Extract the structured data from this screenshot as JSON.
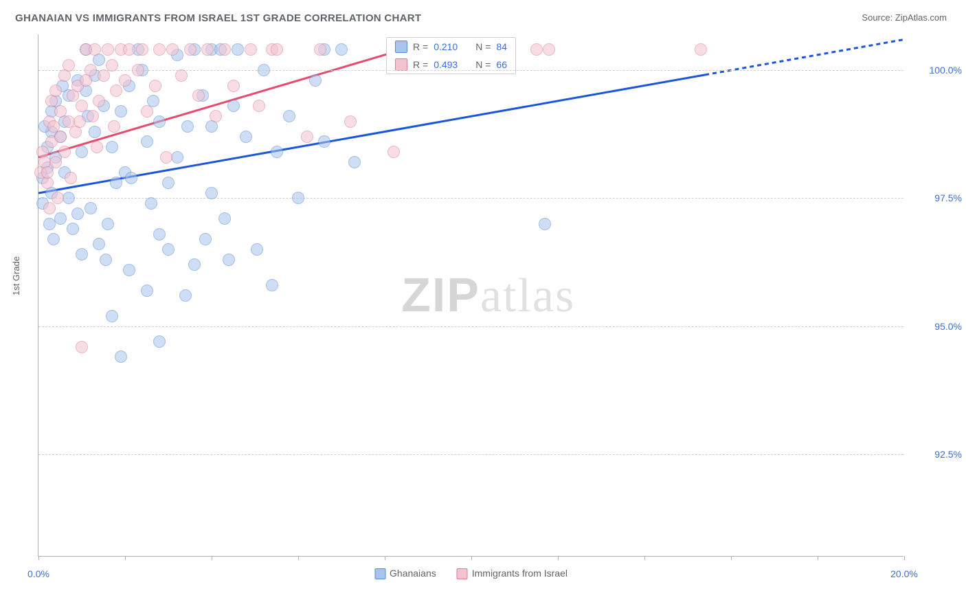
{
  "title": "GHANAIAN VS IMMIGRANTS FROM ISRAEL 1ST GRADE CORRELATION CHART",
  "source_label": "Source:",
  "source_value": "ZipAtlas.com",
  "ylabel": "1st Grade",
  "watermark_a": "ZIP",
  "watermark_b": "atlas",
  "chart": {
    "type": "scatter",
    "xlim": [
      0,
      20
    ],
    "ylim": [
      90.5,
      100.7
    ],
    "x_ticks": [
      0,
      2,
      4,
      6,
      8,
      10,
      12,
      14,
      16,
      18,
      20
    ],
    "x_tick_labels": {
      "0": "0.0%",
      "20": "20.0%"
    },
    "y_gridlines": [
      92.5,
      95.0,
      97.5,
      100.0
    ],
    "y_tick_labels": [
      "92.5%",
      "95.0%",
      "97.5%",
      "100.0%"
    ],
    "background_color": "#ffffff",
    "grid_color": "#d0d0d0",
    "axis_color": "#b0b0b0",
    "tick_label_color": "#3b6fd6",
    "marker_radius": 9,
    "marker_opacity": 0.55,
    "series": [
      {
        "id": "ghanaians",
        "label": "Ghanaians",
        "fill": "#a6c4ee",
        "stroke": "#5b8bd4",
        "trend_color": "#1a56db",
        "trend_width": 3,
        "R": "0.210",
        "N": "84",
        "trend": {
          "x1": 0,
          "y1": 97.6,
          "x2": 20,
          "y2": 100.6,
          "dash_from_x": 15.4
        },
        "points": [
          [
            0.1,
            97.9
          ],
          [
            0.1,
            97.4
          ],
          [
            0.2,
            98.1
          ],
          [
            0.2,
            98.5
          ],
          [
            0.25,
            97.0
          ],
          [
            0.3,
            98.8
          ],
          [
            0.3,
            97.6
          ],
          [
            0.3,
            99.2
          ],
          [
            0.4,
            99.4
          ],
          [
            0.4,
            98.3
          ],
          [
            0.5,
            97.1
          ],
          [
            0.5,
            98.7
          ],
          [
            0.6,
            99.0
          ],
          [
            0.6,
            98.0
          ],
          [
            0.7,
            97.5
          ],
          [
            0.7,
            99.5
          ],
          [
            0.8,
            96.9
          ],
          [
            0.9,
            97.2
          ],
          [
            0.9,
            99.8
          ],
          [
            1.0,
            96.4
          ],
          [
            1.0,
            98.4
          ],
          [
            1.1,
            100.4
          ],
          [
            1.1,
            99.6
          ],
          [
            1.2,
            97.3
          ],
          [
            1.3,
            99.9
          ],
          [
            1.3,
            98.8
          ],
          [
            1.4,
            96.6
          ],
          [
            1.4,
            100.2
          ],
          [
            1.5,
            99.3
          ],
          [
            1.6,
            97.0
          ],
          [
            1.7,
            95.2
          ],
          [
            1.7,
            98.5
          ],
          [
            1.9,
            99.2
          ],
          [
            1.9,
            94.4
          ],
          [
            2.0,
            98.0
          ],
          [
            2.1,
            96.1
          ],
          [
            2.1,
            99.7
          ],
          [
            2.3,
            100.4
          ],
          [
            2.5,
            98.6
          ],
          [
            2.5,
            95.7
          ],
          [
            2.6,
            97.4
          ],
          [
            2.8,
            96.8
          ],
          [
            2.8,
            99.0
          ],
          [
            2.8,
            94.7
          ],
          [
            3.0,
            97.8
          ],
          [
            3.2,
            100.3
          ],
          [
            3.2,
            98.3
          ],
          [
            3.4,
            95.6
          ],
          [
            3.6,
            100.4
          ],
          [
            3.6,
            96.2
          ],
          [
            3.8,
            99.5
          ],
          [
            4.0,
            97.6
          ],
          [
            4.0,
            100.4
          ],
          [
            4.0,
            98.9
          ],
          [
            4.2,
            100.4
          ],
          [
            4.3,
            97.1
          ],
          [
            4.4,
            96.3
          ],
          [
            4.6,
            100.4
          ],
          [
            4.8,
            98.7
          ],
          [
            5.2,
            100.0
          ],
          [
            5.4,
            95.8
          ],
          [
            5.5,
            98.4
          ],
          [
            5.8,
            99.1
          ],
          [
            6.0,
            97.5
          ],
          [
            6.4,
            99.8
          ],
          [
            6.6,
            98.6
          ],
          [
            6.6,
            100.4
          ],
          [
            7.0,
            100.4
          ],
          [
            7.3,
            98.2
          ],
          [
            11.7,
            97.0
          ],
          [
            2.4,
            100.0
          ],
          [
            3.0,
            96.5
          ],
          [
            4.5,
            99.3
          ],
          [
            1.8,
            97.8
          ],
          [
            0.15,
            98.9
          ],
          [
            0.35,
            96.7
          ],
          [
            0.55,
            99.7
          ],
          [
            1.15,
            99.1
          ],
          [
            1.55,
            96.3
          ],
          [
            2.15,
            97.9
          ],
          [
            2.65,
            99.4
          ],
          [
            3.45,
            98.9
          ],
          [
            3.85,
            96.7
          ],
          [
            5.05,
            96.5
          ]
        ]
      },
      {
        "id": "israel",
        "label": "Immigrants from Israel",
        "fill": "#f5c3cf",
        "stroke": "#d87e95",
        "trend_color": "#e74a6e",
        "trend_width": 3,
        "R": "0.493",
        "N": "66",
        "trend": {
          "x1": 0,
          "y1": 98.3,
          "x2": 9.2,
          "y2": 100.6,
          "dash_from_x": null
        },
        "points": [
          [
            0.05,
            98.0
          ],
          [
            0.1,
            98.4
          ],
          [
            0.15,
            98.2
          ],
          [
            0.2,
            97.8
          ],
          [
            0.2,
            98.0
          ],
          [
            0.25,
            99.0
          ],
          [
            0.25,
            97.3
          ],
          [
            0.3,
            99.4
          ],
          [
            0.3,
            98.6
          ],
          [
            0.35,
            98.9
          ],
          [
            0.4,
            99.6
          ],
          [
            0.4,
            98.2
          ],
          [
            0.5,
            99.2
          ],
          [
            0.5,
            98.7
          ],
          [
            0.6,
            99.9
          ],
          [
            0.6,
            98.4
          ],
          [
            0.7,
            99.0
          ],
          [
            0.7,
            100.1
          ],
          [
            0.8,
            99.5
          ],
          [
            0.85,
            98.8
          ],
          [
            0.9,
            99.7
          ],
          [
            0.95,
            99.0
          ],
          [
            1.0,
            94.6
          ],
          [
            1.0,
            99.3
          ],
          [
            1.1,
            100.4
          ],
          [
            1.1,
            99.8
          ],
          [
            1.2,
            100.0
          ],
          [
            1.25,
            99.1
          ],
          [
            1.3,
            100.4
          ],
          [
            1.4,
            99.4
          ],
          [
            1.5,
            99.9
          ],
          [
            1.6,
            100.4
          ],
          [
            1.7,
            100.1
          ],
          [
            1.8,
            99.6
          ],
          [
            1.9,
            100.4
          ],
          [
            2.0,
            99.8
          ],
          [
            2.1,
            100.4
          ],
          [
            2.3,
            100.0
          ],
          [
            2.4,
            100.4
          ],
          [
            2.5,
            99.2
          ],
          [
            2.7,
            99.7
          ],
          [
            2.8,
            100.4
          ],
          [
            3.1,
            100.4
          ],
          [
            3.3,
            99.9
          ],
          [
            3.5,
            100.4
          ],
          [
            3.7,
            99.5
          ],
          [
            3.9,
            100.4
          ],
          [
            4.1,
            99.1
          ],
          [
            4.3,
            100.4
          ],
          [
            4.5,
            99.7
          ],
          [
            4.9,
            100.4
          ],
          [
            5.1,
            99.3
          ],
          [
            5.4,
            100.4
          ],
          [
            5.5,
            100.4
          ],
          [
            6.2,
            98.7
          ],
          [
            6.5,
            100.4
          ],
          [
            7.2,
            99.0
          ],
          [
            8.2,
            98.4
          ],
          [
            11.5,
            100.4
          ],
          [
            11.8,
            100.4
          ],
          [
            15.3,
            100.4
          ],
          [
            0.45,
            97.5
          ],
          [
            0.75,
            97.9
          ],
          [
            1.35,
            98.5
          ],
          [
            1.75,
            98.9
          ],
          [
            2.95,
            98.3
          ]
        ]
      }
    ]
  },
  "legend_box": {
    "labels": {
      "R": "R =",
      "N": "N ="
    }
  }
}
